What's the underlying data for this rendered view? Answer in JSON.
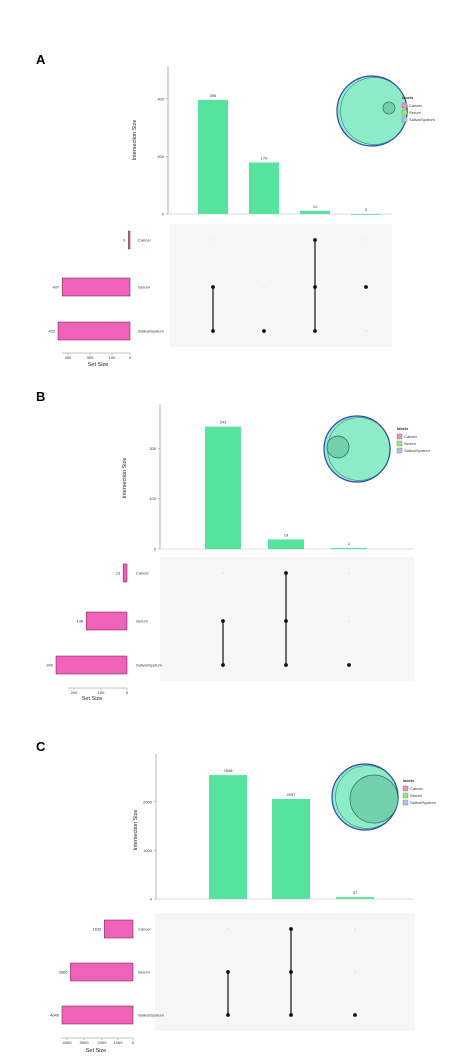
{
  "chart_data": [
    {
      "panel": "A",
      "type": "upset",
      "ylabel": "Intersection Size",
      "xlabel": "Set Size",
      "sets": [
        {
          "name": "Cancer",
          "size": 9
        },
        {
          "name": "Serum",
          "size": 407
        },
        {
          "name": "Saliva/Sputum",
          "size": 432
        }
      ],
      "intersections": [
        {
          "value": 396,
          "members": [
            "Saliva/Sputum",
            "Serum"
          ]
        },
        {
          "value": 179,
          "members": [
            "Saliva/Sputum"
          ]
        },
        {
          "value": 11,
          "members": [
            "Cancer",
            "Serum",
            "Saliva/Sputum"
          ]
        },
        {
          "value": 0,
          "members": [
            "Serum"
          ]
        }
      ],
      "ylim": [
        0,
        500
      ],
      "yticks": [
        "0",
        "200",
        "400"
      ],
      "setticks": [
        "400",
        "300",
        "100",
        "0"
      ],
      "legend": {
        "title": "labels",
        "items": [
          "Cancer",
          "Serum",
          "Saliva/Sputum"
        ],
        "colors": [
          "#f28fc6",
          "#98e87a",
          "#a6c8f0"
        ]
      }
    },
    {
      "panel": "B",
      "type": "upset",
      "ylabel": "Intersection Size",
      "xlabel": "Set Size",
      "sets": [
        {
          "name": "Cancer",
          "size": 13
        },
        {
          "name": "Serum",
          "size": 138
        },
        {
          "name": "Saliva/Sputum",
          "size": 240
        }
      ],
      "intersections": [
        {
          "value": 243,
          "members": [
            "Saliva/Sputum",
            "Serum"
          ]
        },
        {
          "value": 19,
          "members": [
            "Cancer",
            "Serum",
            "Saliva/Sputum"
          ]
        },
        {
          "value": 2,
          "members": [
            "Saliva/Sputum"
          ]
        }
      ],
      "ylim": [
        0,
        280
      ],
      "yticks": [
        "0",
        "100",
        "200"
      ],
      "setticks": [
        "200",
        "100",
        "0"
      ],
      "legend": {
        "title": "labels",
        "items": [
          "Cancer",
          "Serum",
          "Saliva/Sputum"
        ],
        "colors": [
          "#f28fc6",
          "#98e87a",
          "#a6c8f0"
        ]
      }
    },
    {
      "panel": "C",
      "type": "upset",
      "ylabel": "Intersection Size",
      "xlabel": "Set Size",
      "sets": [
        {
          "name": "Cancer",
          "size": 1632
        },
        {
          "name": "Serum",
          "size": 3566
        },
        {
          "name": "Saliva/Sputum",
          "size": 4046
        }
      ],
      "intersections": [
        {
          "value": 2548,
          "members": [
            "Saliva/Sputum",
            "Serum"
          ]
        },
        {
          "value": 2057,
          "members": [
            "Cancer",
            "Serum",
            "Saliva/Sputum"
          ]
        },
        {
          "value": 37,
          "members": [
            "Saliva/Sputum"
          ]
        }
      ],
      "ylim": [
        0,
        2900
      ],
      "yticks": [
        "0",
        "1000",
        "2000"
      ],
      "setticks": [
        "4000",
        "3000",
        "2000",
        "1000",
        "0"
      ],
      "legend": {
        "title": "labels",
        "items": [
          "Cancer",
          "Serum",
          "Saliva/Sputum"
        ],
        "colors": [
          "#f28fc6",
          "#98e87a",
          "#a6c8f0"
        ]
      }
    }
  ],
  "colors": {
    "bar": "#56e39f",
    "setbar": "#f062b9",
    "dot": "#111111",
    "matrix_bg": "#f6f6f6",
    "venn_fill": "#8eebc9",
    "venn_edge": "#2c43b8"
  }
}
